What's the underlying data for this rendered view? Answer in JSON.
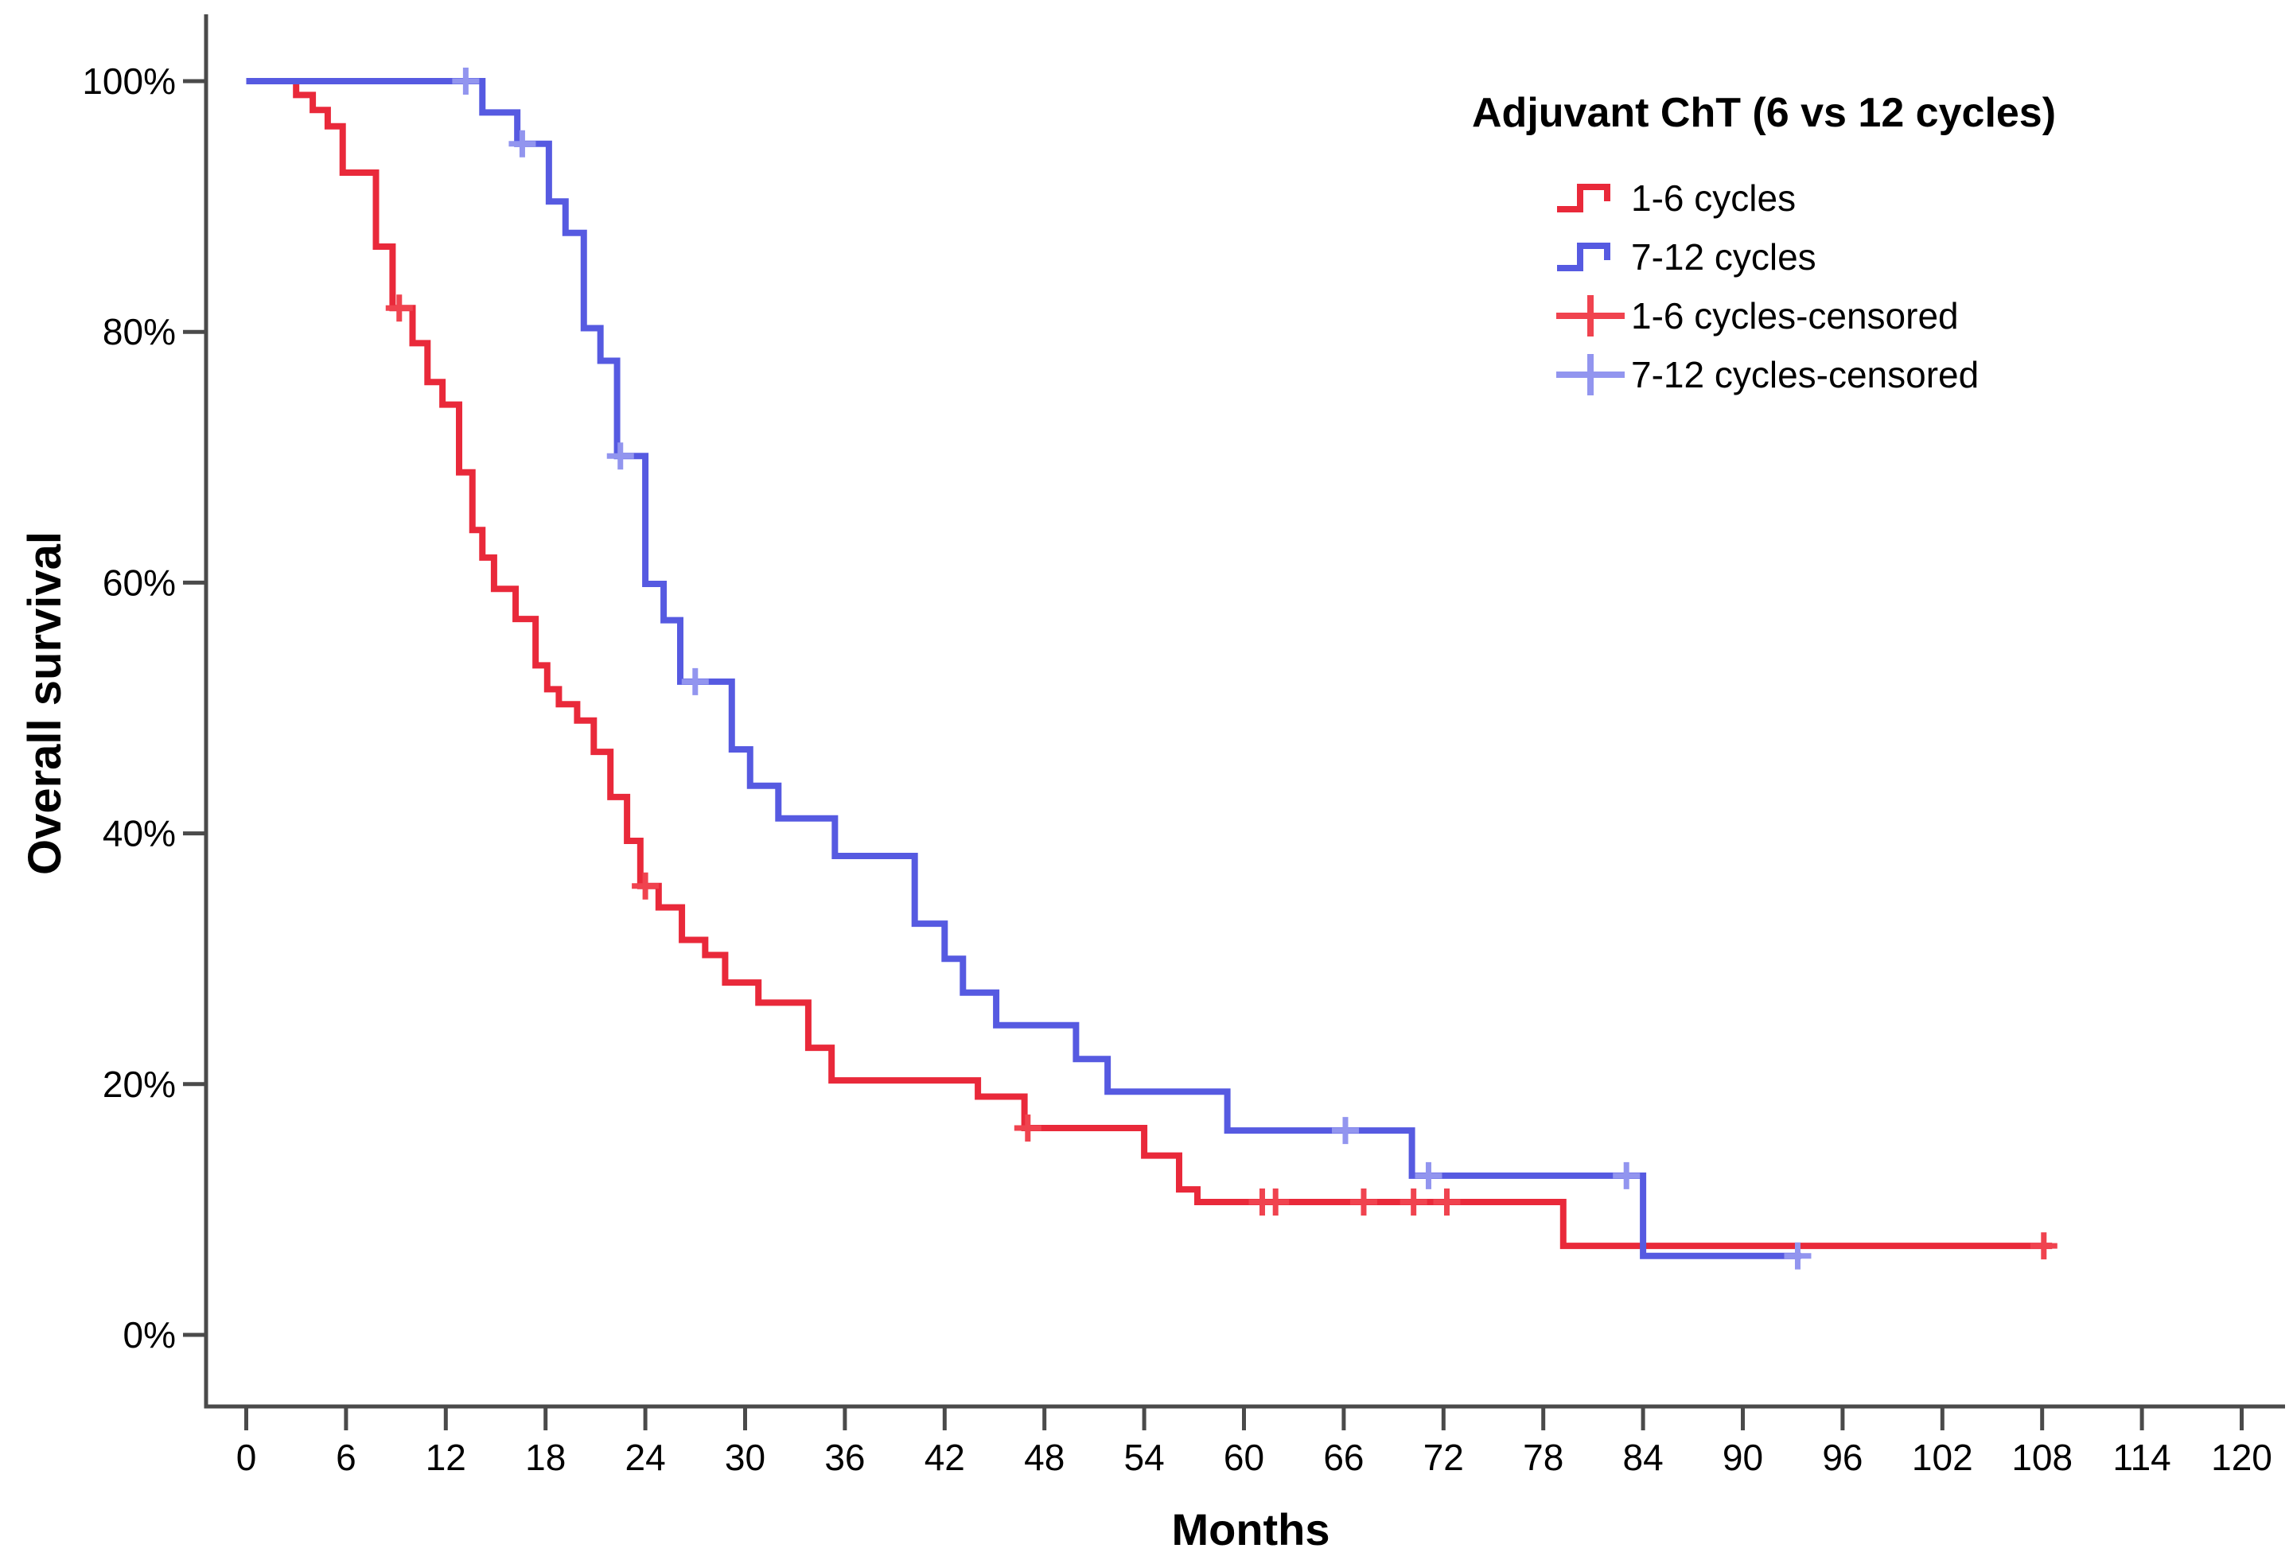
{
  "figure": {
    "background": "#ffffff",
    "axis_color": "#4a4a4a",
    "text_color": "#000000"
  },
  "chart_data": {
    "type": "line",
    "subtype": "kaplan_meier_step",
    "title": "",
    "xlabel": "Months",
    "ylabel": "Overall survival",
    "xlim": [
      0,
      120
    ],
    "ylim": [
      0,
      100
    ],
    "grid": false,
    "x_ticks": [
      0,
      6,
      12,
      18,
      24,
      30,
      36,
      42,
      48,
      54,
      60,
      66,
      72,
      78,
      84,
      90,
      96,
      102,
      108,
      114,
      120
    ],
    "x_tick_labels": [
      "0",
      "6",
      "12",
      "18",
      "24",
      "30",
      "36",
      "42",
      "48",
      "54",
      "60",
      "66",
      "72",
      "78",
      "84",
      "90",
      "96",
      "102",
      "108",
      "114",
      "120"
    ],
    "y_ticks": [
      0,
      20,
      40,
      60,
      80,
      100
    ],
    "y_tick_labels": [
      "0%",
      "20%",
      "40%",
      "60%",
      "80%",
      "100%"
    ],
    "legend": {
      "title": "Adjuvant ChT (6 vs 12 cycles)",
      "position": "upper-right-inside",
      "entries": [
        {
          "label": "1-6 cycles",
          "marker": "step",
          "color": "#e9293a"
        },
        {
          "label": "7-12 cycles",
          "marker": "step",
          "color": "#565ae1"
        },
        {
          "label": "1-6 cycles-censored",
          "marker": "plus",
          "color": "#f0434f"
        },
        {
          "label": "7-12 cycles-censored",
          "marker": "plus",
          "color": "#9295ef"
        }
      ]
    },
    "series": [
      {
        "name": "1-6 cycles",
        "color": "#e9293a",
        "censor_color": "#f0434f",
        "steps": [
          [
            0,
            100
          ],
          [
            3,
            98.9
          ],
          [
            4,
            97.7
          ],
          [
            4.9,
            96.4
          ],
          [
            5.8,
            92.7
          ],
          [
            7.8,
            86.8
          ],
          [
            8.8,
            81.9
          ],
          [
            10,
            79.1
          ],
          [
            10.9,
            76.0
          ],
          [
            11.8,
            74.2
          ],
          [
            12.8,
            68.8
          ],
          [
            13.6,
            64.2
          ],
          [
            14.2,
            62.0
          ],
          [
            14.9,
            59.5
          ],
          [
            16.2,
            57.1
          ],
          [
            17.4,
            53.4
          ],
          [
            18.1,
            51.5
          ],
          [
            18.8,
            50.3
          ],
          [
            19.9,
            49.0
          ],
          [
            20.9,
            46.5
          ],
          [
            21.9,
            42.9
          ],
          [
            22.9,
            39.4
          ],
          [
            23.7,
            35.8
          ],
          [
            24.8,
            34.1
          ],
          [
            26.2,
            31.5
          ],
          [
            27.6,
            30.3
          ],
          [
            28.8,
            28.1
          ],
          [
            30.8,
            26.5
          ],
          [
            33.8,
            22.9
          ],
          [
            35.2,
            20.3
          ],
          [
            44,
            19.0
          ],
          [
            46.8,
            16.5
          ],
          [
            54,
            14.3
          ],
          [
            56.1,
            11.6
          ],
          [
            57.2,
            10.6
          ],
          [
            79.2,
            7.1
          ]
        ],
        "end_time": 108.6,
        "censored": [
          [
            9.2,
            81.9
          ],
          [
            24,
            35.8
          ],
          [
            47,
            16.5
          ],
          [
            61.1,
            10.6
          ],
          [
            61.9,
            10.6
          ],
          [
            67.2,
            10.6
          ],
          [
            70.2,
            10.6
          ],
          [
            72.2,
            10.6
          ],
          [
            108.1,
            7.1
          ]
        ]
      },
      {
        "name": "7-12 cycles",
        "color": "#565ae1",
        "censor_color": "#9295ef",
        "steps": [
          [
            0,
            100
          ],
          [
            14.2,
            97.5
          ],
          [
            16.3,
            95.0
          ],
          [
            18.2,
            90.4
          ],
          [
            19.2,
            87.9
          ],
          [
            20.3,
            80.3
          ],
          [
            21.3,
            77.7
          ],
          [
            22.3,
            70.1
          ],
          [
            24,
            59.9
          ],
          [
            25.1,
            57.0
          ],
          [
            26.1,
            52.1
          ],
          [
            29.2,
            46.7
          ],
          [
            30.3,
            43.8
          ],
          [
            32,
            41.2
          ],
          [
            35.4,
            38.2
          ],
          [
            40.2,
            32.8
          ],
          [
            42,
            30.0
          ],
          [
            43.1,
            27.3
          ],
          [
            45.1,
            24.7
          ],
          [
            49.9,
            22.0
          ],
          [
            51.8,
            19.4
          ],
          [
            59,
            16.3
          ],
          [
            70.1,
            12.7
          ],
          [
            84,
            6.3
          ]
        ],
        "end_time": 93.5,
        "censored": [
          [
            13.2,
            100
          ],
          [
            16.6,
            95.0
          ],
          [
            22.5,
            70.1
          ],
          [
            27,
            52.1
          ],
          [
            66.1,
            16.3
          ],
          [
            71.1,
            12.7
          ],
          [
            83,
            12.7
          ],
          [
            93.3,
            6.3
          ]
        ]
      }
    ]
  }
}
